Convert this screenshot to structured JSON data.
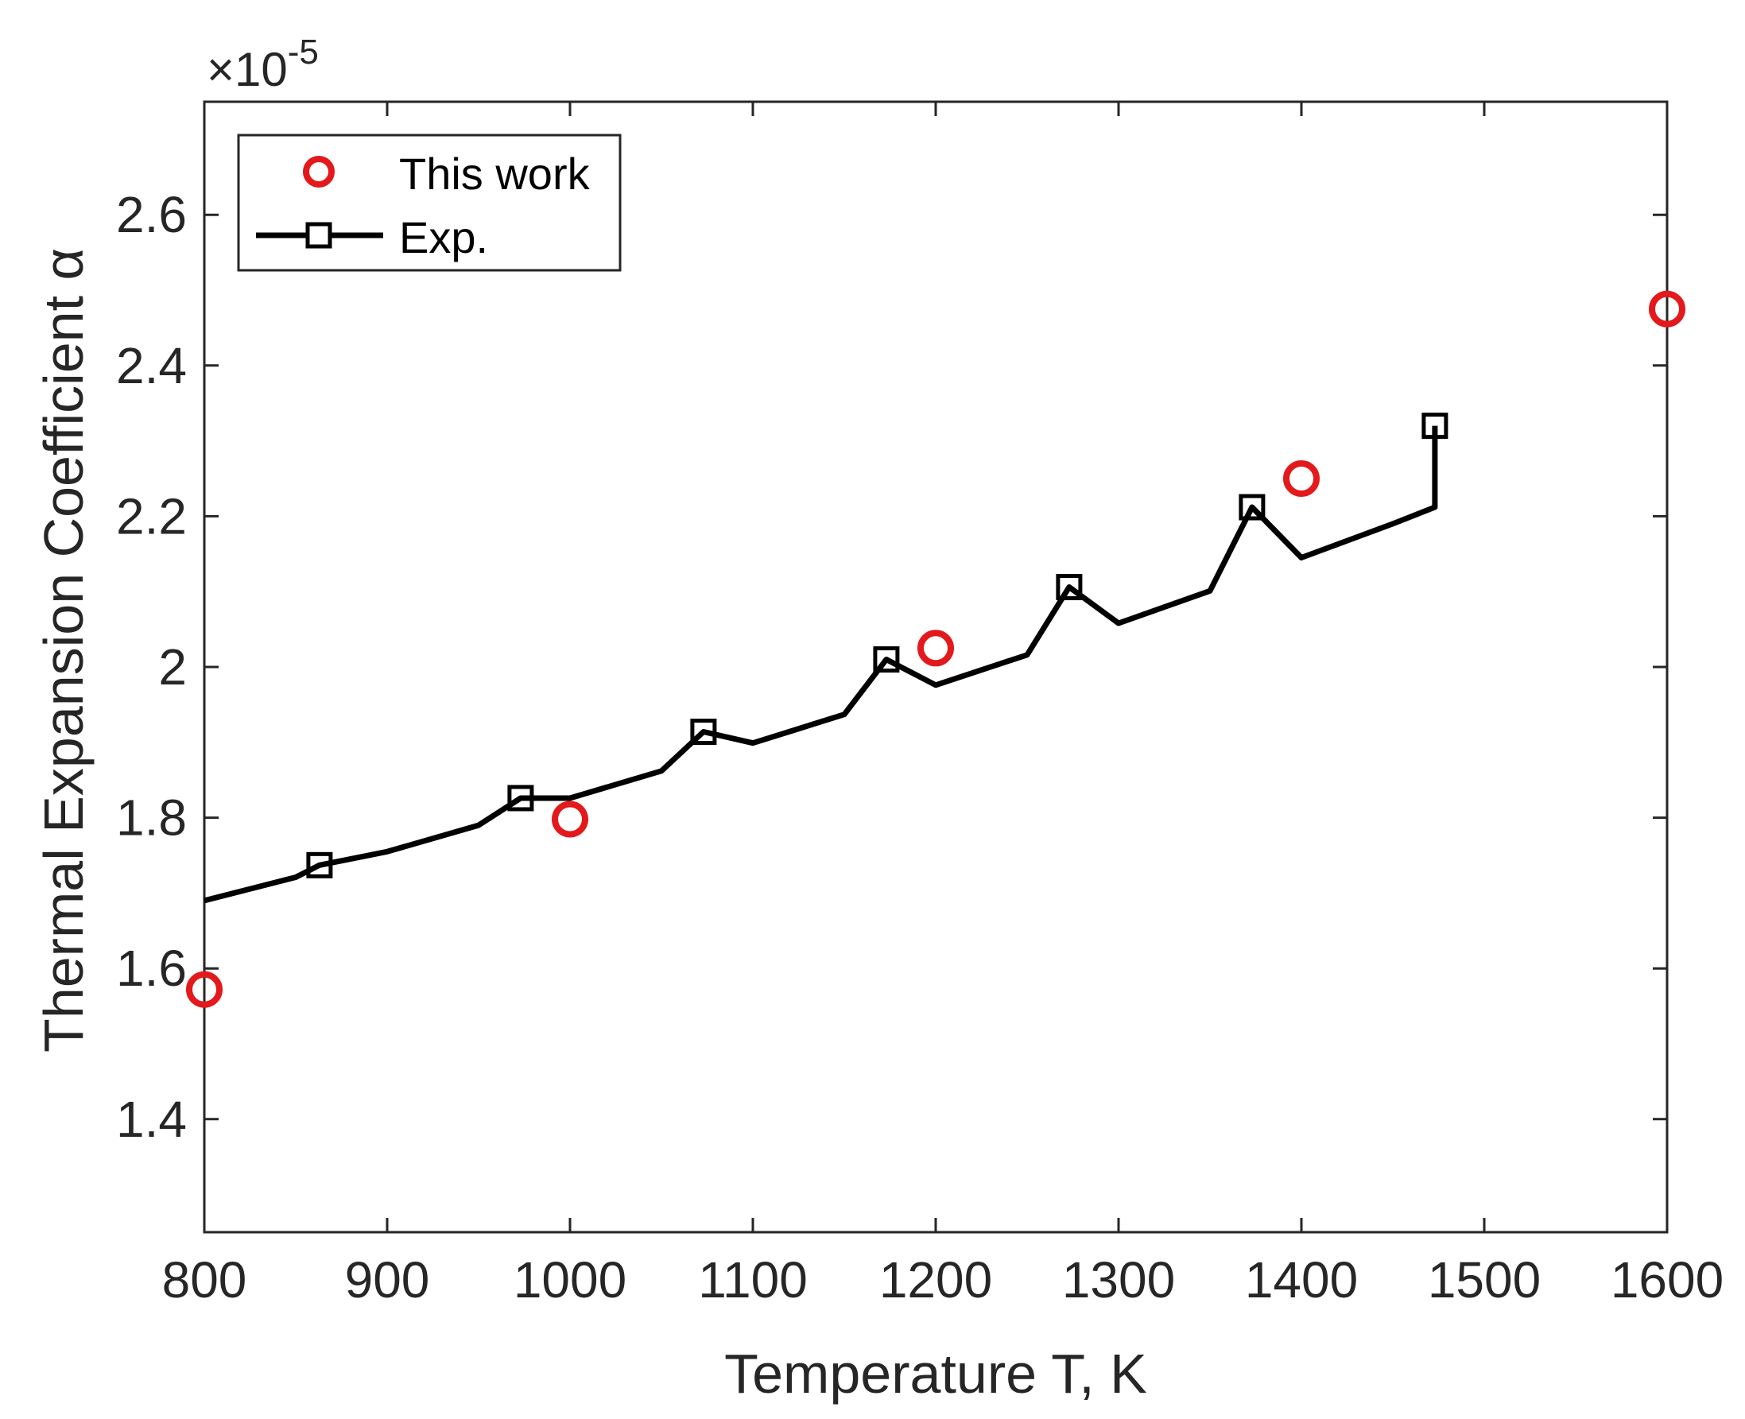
{
  "chart_data": {
    "type": "line",
    "xlabel": "Temperature T, K",
    "ylabel": "Thermal Expansion Coefficient α",
    "y_exponent_prefix": "×10",
    "y_exponent_power": "-5",
    "xlim": [
      800,
      1600
    ],
    "ylim": [
      1.25,
      2.75
    ],
    "xticks": [
      800,
      900,
      1000,
      1100,
      1200,
      1300,
      1400,
      1500,
      1600
    ],
    "xtick_labels": [
      "800",
      "900",
      "1000",
      "1100",
      "1200",
      "1300",
      "1400",
      "1500",
      "1600"
    ],
    "yticks": [
      1.4,
      1.6,
      1.8,
      2.0,
      2.2,
      2.4,
      2.6
    ],
    "ytick_labels": [
      "1.4",
      "1.6",
      "1.8",
      "2",
      "2.2",
      "2.4",
      "2.6"
    ],
    "grid": false,
    "legend_position": "top-left",
    "series": [
      {
        "name": "This work",
        "style": "markers",
        "marker": "circle",
        "color": "#e3191c",
        "x": [
          800,
          1000,
          1200,
          1400,
          1600
        ],
        "y": [
          1.572,
          1.798,
          2.025,
          2.25,
          2.475
        ]
      },
      {
        "name": "Exp.",
        "style": "line+markers",
        "marker": "square",
        "color": "#000000",
        "curve_x": [
          800,
          850,
          900,
          950,
          1000,
          1050,
          1100,
          1150,
          1200,
          1250,
          1300,
          1350,
          1400,
          1450,
          1473
        ],
        "curve_y": [
          1.69,
          1.721,
          1.755,
          1.79,
          1.826,
          1.862,
          1.899,
          1.937,
          1.976,
          2.016,
          2.058,
          2.101,
          2.145,
          2.19,
          2.212
        ],
        "x": [
          863,
          973,
          1073,
          1173,
          1273,
          1373,
          1473
        ],
        "y": [
          1.737,
          1.826,
          1.914,
          2.01,
          2.106,
          2.212,
          2.32
        ]
      }
    ]
  }
}
